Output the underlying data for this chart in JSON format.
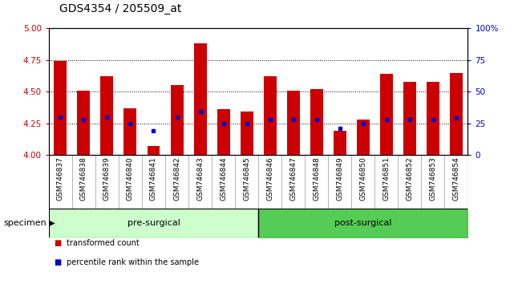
{
  "title": "GDS4354 / 205509_at",
  "samples": [
    "GSM746837",
    "GSM746838",
    "GSM746839",
    "GSM746840",
    "GSM746841",
    "GSM746842",
    "GSM746843",
    "GSM746844",
    "GSM746845",
    "GSM746846",
    "GSM746847",
    "GSM746848",
    "GSM746849",
    "GSM746850",
    "GSM746851",
    "GSM746852",
    "GSM746853",
    "GSM746854"
  ],
  "bar_values": [
    4.74,
    4.51,
    4.62,
    4.37,
    4.07,
    4.55,
    4.88,
    4.36,
    4.34,
    4.62,
    4.51,
    4.52,
    4.19,
    4.28,
    4.64,
    4.58,
    4.58,
    4.65
  ],
  "blue_dot_values": [
    4.3,
    4.28,
    4.3,
    4.25,
    4.19,
    4.3,
    4.34,
    4.25,
    4.25,
    4.28,
    4.28,
    4.28,
    4.21,
    4.25,
    4.28,
    4.28,
    4.28,
    4.29
  ],
  "ymin": 4.0,
  "ymax": 5.0,
  "yticks_left": [
    4.0,
    4.25,
    4.5,
    4.75,
    5.0
  ],
  "yticks_right_vals": [
    0,
    25,
    50,
    75,
    100
  ],
  "yticks_right_labels": [
    "0",
    "25",
    "50",
    "75",
    "100%"
  ],
  "bar_color": "#cc0000",
  "dot_color": "#0000cc",
  "groups": [
    {
      "label": "pre-surgical",
      "start": 0,
      "end": 9,
      "color": "#ccffcc"
    },
    {
      "label": "post-surgical",
      "start": 9,
      "end": 18,
      "color": "#55cc55"
    }
  ],
  "specimen_label": "specimen",
  "legend_items": [
    {
      "color": "#cc0000",
      "label": "transformed count"
    },
    {
      "color": "#0000cc",
      "label": "percentile rank within the sample"
    }
  ],
  "background_color": "#ffffff",
  "bar_width": 0.55,
  "title_fontsize": 10,
  "tick_label_fontsize": 6.5,
  "axis_tick_color_left": "#cc0000",
  "axis_tick_color_right": "#0000cc",
  "xtick_bg": "#cccccc",
  "xtick_border": "#999999"
}
